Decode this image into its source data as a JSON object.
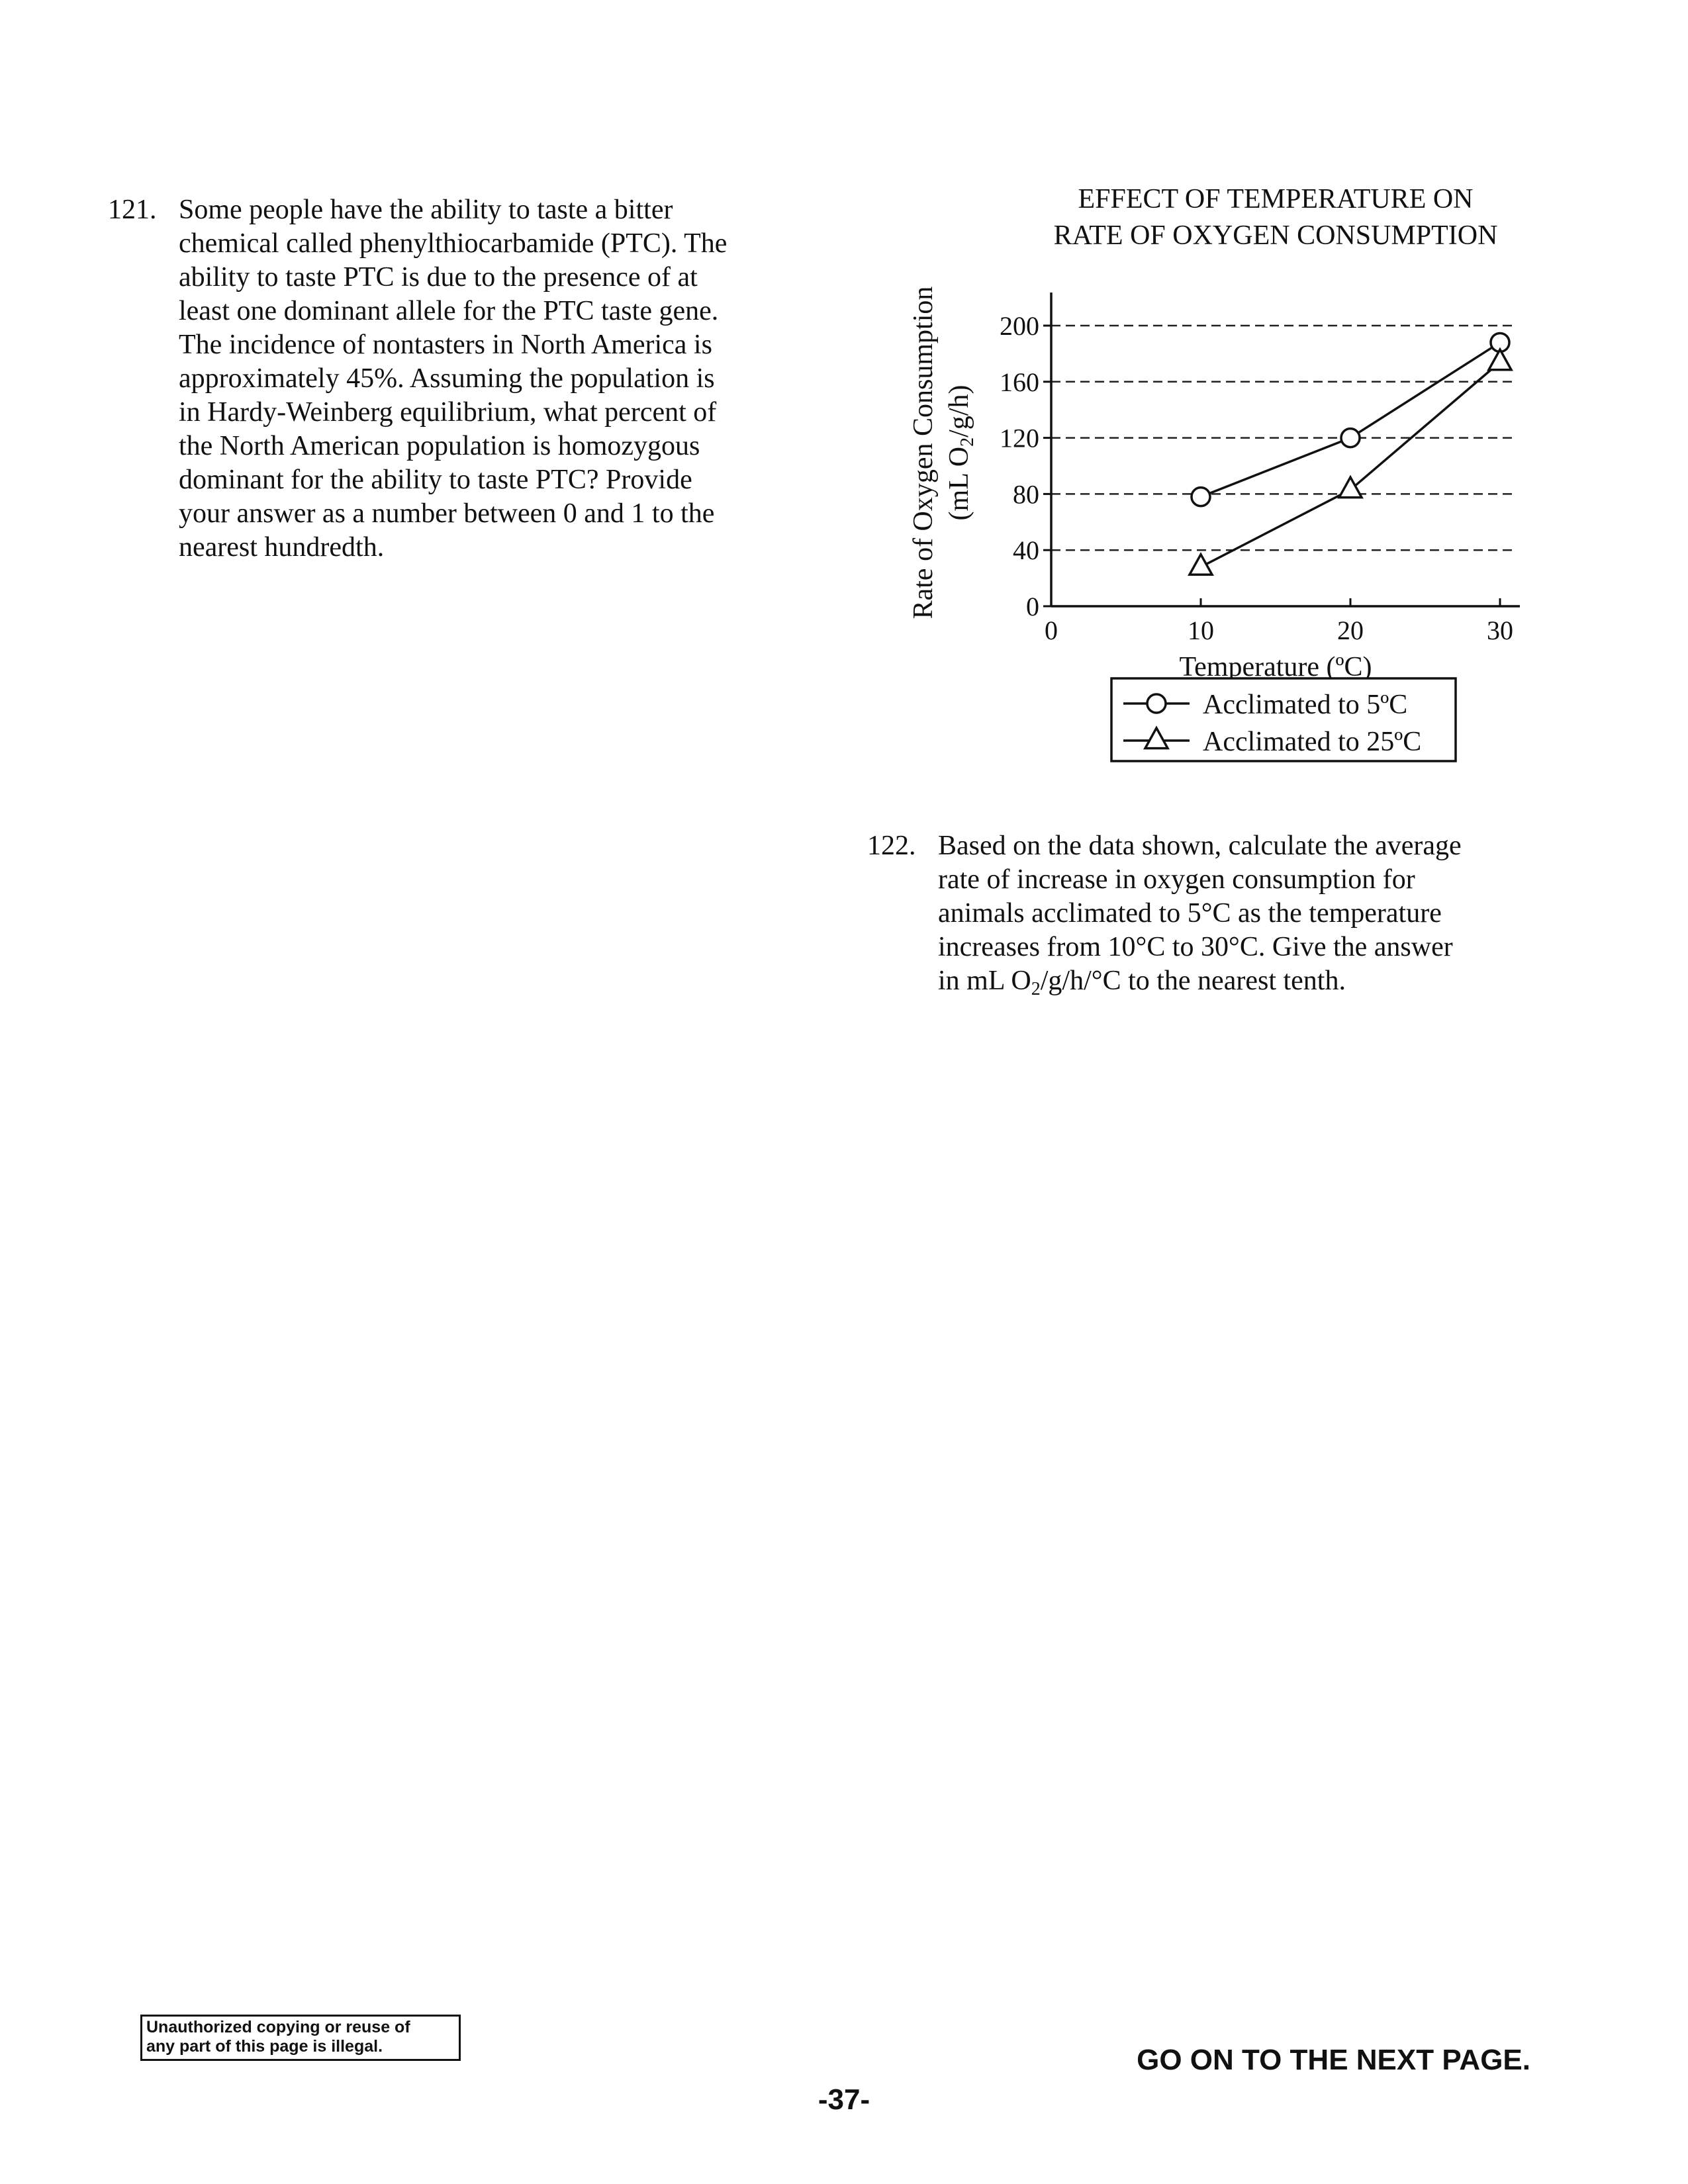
{
  "q121": {
    "number": "121.",
    "lines": [
      "Some people have the ability to taste a bitter",
      "chemical called phenylthiocarbamide (PTC). The",
      "ability to taste PTC is due to the presence of at",
      "least one dominant allele for the PTC taste gene.",
      "The incidence of nontasters in North America is",
      "approximately 45%. Assuming the population is",
      "in Hardy-Weinberg equilibrium, what percent of",
      "the North American population is homozygous",
      "dominant for the ability to taste PTC? Provide",
      "your answer as a number between 0 and 1 to the",
      "nearest hundredth."
    ]
  },
  "q122": {
    "number": "122.",
    "lines": [
      "Based on the data shown, calculate the average",
      "rate of increase in oxygen consumption for",
      "animals acclimated to 5°C as the temperature",
      "increases from 10°C to 30°C. Give the answer"
    ],
    "last_line_pre": "in mL O",
    "last_line_sub": "2",
    "last_line_post": "/g/h/°C to the nearest tenth."
  },
  "chart_data": {
    "type": "line",
    "title_lines": [
      "EFFECT OF TEMPERATURE ON",
      "RATE OF OXYGEN CONSUMPTION"
    ],
    "xlabel": "Temperature (ºC)",
    "ylabel_line1": "Rate of Oxygen Consumption",
    "ylabel_line2_pre": "(mL  O",
    "ylabel_line2_sub": "2",
    "ylabel_line2_post": "/g/h)",
    "xlim": [
      0,
      30
    ],
    "ylim": [
      0,
      200
    ],
    "xticks": [
      0,
      10,
      20,
      30
    ],
    "yticks": [
      0,
      40,
      80,
      120,
      160,
      200
    ],
    "grid": "dashed horizontal",
    "legend_position": "below",
    "series": [
      {
        "name": "Acclimated to 5ºC",
        "marker": "circle",
        "x": [
          10,
          20,
          30
        ],
        "y": [
          78,
          120,
          188
        ]
      },
      {
        "name": "Acclimated to 25ºC",
        "marker": "triangle",
        "x": [
          10,
          20,
          30
        ],
        "y": [
          28,
          83,
          174
        ]
      }
    ]
  },
  "footer": {
    "notice_line1": "Unauthorized copying or reuse of",
    "notice_line2": "any part of this page is illegal.",
    "go_on": "GO ON TO THE NEXT PAGE.",
    "page_number": "-37-"
  }
}
